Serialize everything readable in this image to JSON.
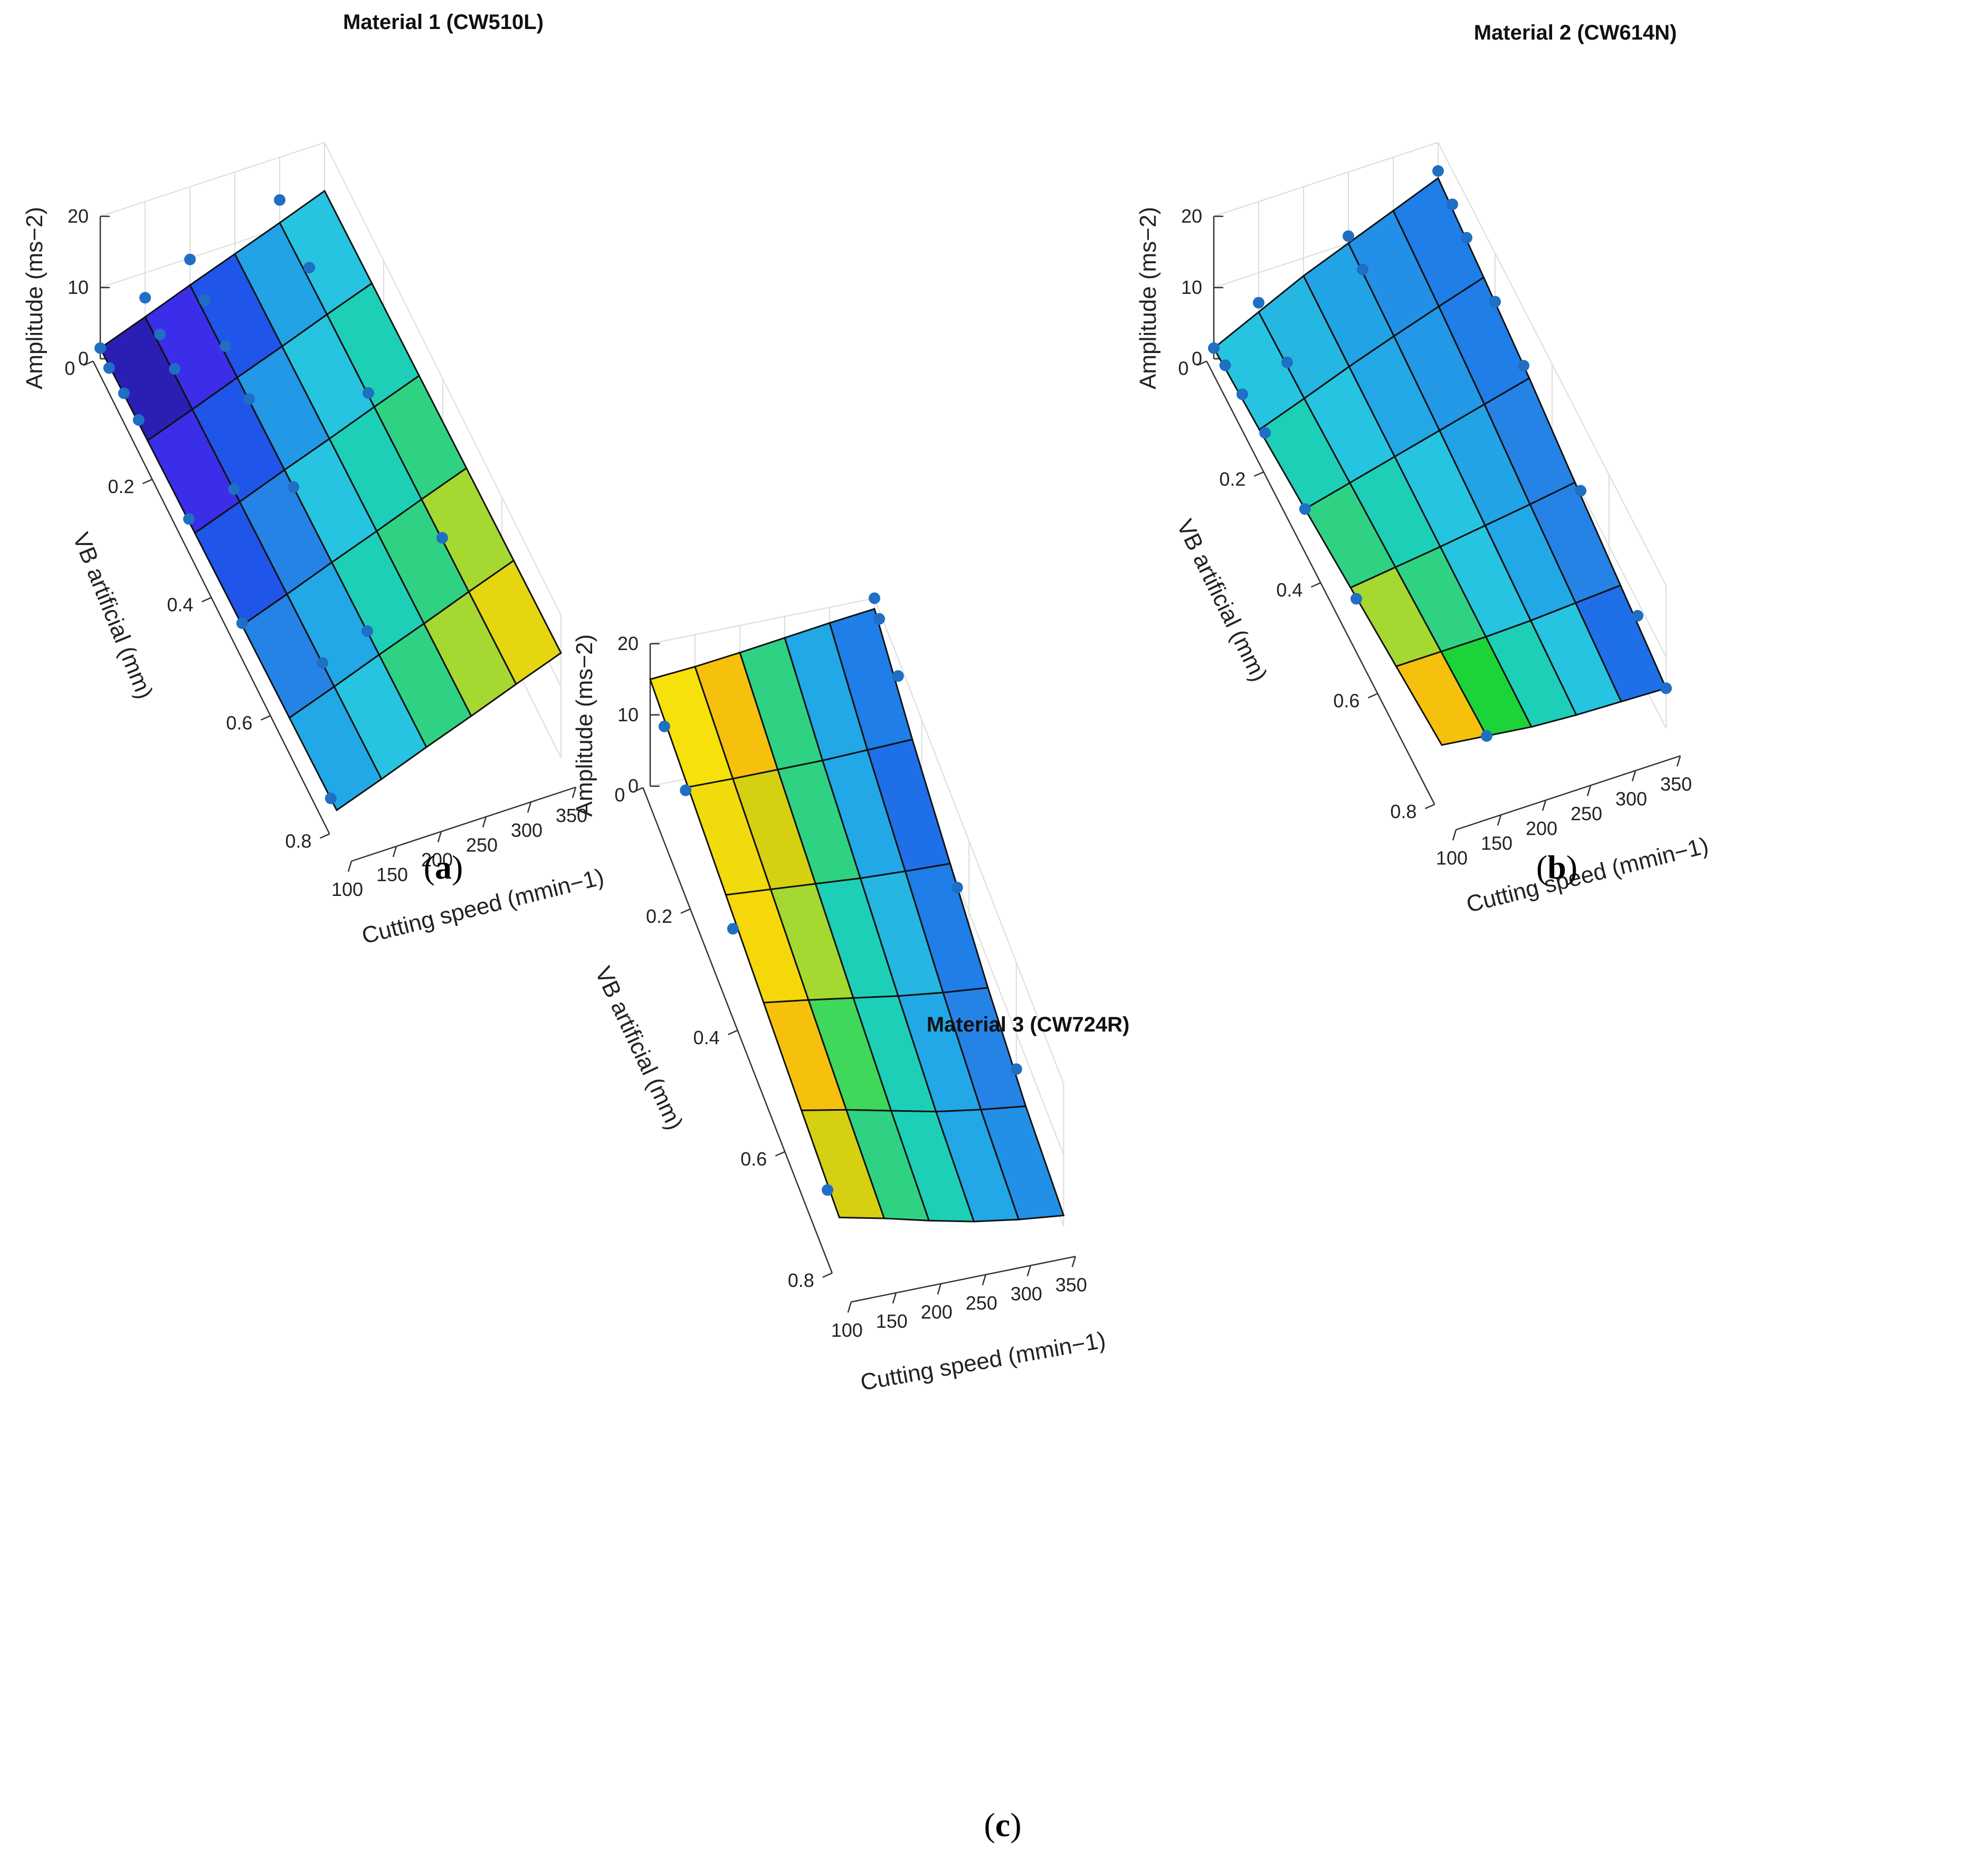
{
  "chart_data": [
    {
      "type": "surface",
      "panel": "(a)",
      "caption_letter": "a",
      "title": "Material 1 (CW510L)",
      "xlabel": "Cutting speed",
      "xunit": "(mmin−1)",
      "ylabel": "VB artificial (mm)",
      "zlabel": "Amplitude",
      "zunit": "(ms−2)",
      "x_ticks": [
        "100",
        "150",
        "200",
        "250",
        "300",
        "350"
      ],
      "y_ticks": [
        "0",
        "0.2",
        "0.4",
        "0.6",
        "0.8"
      ],
      "z_ticks": [
        "0",
        "10",
        "20"
      ],
      "xlim": [
        100,
        350
      ],
      "ylim": [
        0,
        0.8
      ],
      "zlim": [
        0,
        20
      ],
      "grid": true,
      "x_values": [
        100,
        150,
        200,
        250,
        300,
        350
      ],
      "y_values": [
        0,
        0.16,
        0.32,
        0.48,
        0.64,
        0.8
      ],
      "z_grid": [
        [
          1.5,
          3.8,
          6.2,
          8.5,
          10.8,
          13.2
        ],
        [
          1.8,
          4.1,
          6.5,
          8.8,
          11.2,
          13.5
        ],
        [
          2.1,
          4.4,
          6.8,
          9.1,
          11.5,
          13.8
        ],
        [
          2.4,
          4.7,
          7.1,
          9.4,
          11.8,
          14.1
        ],
        [
          2.7,
          5.0,
          7.4,
          9.7,
          12.1,
          14.4
        ],
        [
          3.0,
          5.3,
          7.7,
          10.0,
          12.4,
          14.7
        ]
      ],
      "cell_colors": [
        [
          "#2a1fb3",
          "#3a2ee8",
          "#1f55e8",
          "#22a3e6",
          "#26c4e0"
        ],
        [
          "#3a2ee8",
          "#1f55e8",
          "#2298e6",
          "#26c4e0",
          "#1ecfb8"
        ],
        [
          "#1f55e8",
          "#2683e6",
          "#26c4e0",
          "#1ecfb8",
          "#2fd283"
        ],
        [
          "#2683e6",
          "#22a8e6",
          "#1ecfb8",
          "#2fd283",
          "#a6d832"
        ],
        [
          "#22a8e6",
          "#26c4e0",
          "#2fd283",
          "#a6d832",
          "#e6d611"
        ],
        [
          "#26c4e0",
          "#1ecfb8",
          "#7ed83a",
          "#e6d611",
          "#f6d80a"
        ]
      ],
      "points": [
        [
          100,
          0,
          1.5
        ],
        [
          100,
          0.03,
          1.2
        ],
        [
          100,
          0.08,
          1.8
        ],
        [
          100,
          0.13,
          2.2
        ],
        [
          100,
          0.3,
          2.4
        ],
        [
          100,
          0.48,
          2.7
        ],
        [
          100,
          0.78,
          3.0
        ],
        [
          150,
          0,
          6.5
        ],
        [
          150,
          0.05,
          5.5
        ],
        [
          150,
          0.1,
          4.8
        ],
        [
          150,
          0.3,
          4.5
        ],
        [
          150,
          0.6,
          5.0
        ],
        [
          200,
          0,
          9.8
        ],
        [
          200,
          0.05,
          8.2
        ],
        [
          200,
          0.12,
          7.6
        ],
        [
          200,
          0.2,
          6.8
        ],
        [
          200,
          0.35,
          6.9
        ],
        [
          200,
          0.6,
          7.4
        ],
        [
          300,
          0.0,
          14.0
        ],
        [
          300,
          0.1,
          12.8
        ],
        [
          300,
          0.3,
          11.8
        ],
        [
          300,
          0.55,
          12.2
        ]
      ]
    },
    {
      "type": "surface",
      "panel": "(b)",
      "caption_letter": "b",
      "title": "Material 2 (CW614N)",
      "xlabel": "Cutting speed",
      "xunit": "(mmin−1)",
      "ylabel": "VB artificial (mm)",
      "zlabel": "Amplitude",
      "zunit": "(ms−2)",
      "x_ticks": [
        "100",
        "150",
        "200",
        "250",
        "300",
        "350"
      ],
      "y_ticks": [
        "0",
        "0.2",
        "0.4",
        "0.6",
        "0.8"
      ],
      "z_ticks": [
        "0",
        "10",
        "20"
      ],
      "xlim": [
        100,
        350
      ],
      "ylim": [
        0,
        0.8
      ],
      "zlim": [
        0,
        20
      ],
      "grid": true,
      "x_values": [
        100,
        150,
        200,
        250,
        300,
        350
      ],
      "y_values": [
        0,
        0.16,
        0.32,
        0.48,
        0.64,
        0.8
      ],
      "z_grid": [
        [
          1.5,
          4.5,
          7.5,
          10.0,
          12.5,
          15.0
        ],
        [
          2.5,
          4.8,
          7.2,
          9.4,
          11.5,
          13.5
        ],
        [
          3.8,
          5.4,
          7.0,
          8.6,
          10.2,
          11.8
        ],
        [
          5.2,
          6.0,
          6.8,
          7.7,
          8.6,
          9.6
        ],
        [
          6.6,
          6.6,
          6.6,
          6.8,
          7.2,
          7.6
        ],
        [
          8.0,
          7.2,
          6.4,
          6.0,
          5.8,
          5.6
        ]
      ],
      "cell_colors": [
        [
          "#26c4e0",
          "#26b6e2",
          "#22a3e6",
          "#2290e6",
          "#1f7ee8"
        ],
        [
          "#1ecfb8",
          "#26c4e0",
          "#22a8e6",
          "#2298e6",
          "#1f7ee8"
        ],
        [
          "#2fd283",
          "#1ecfb8",
          "#26c4e0",
          "#22a3e6",
          "#2683e6"
        ],
        [
          "#a6d832",
          "#2fd283",
          "#26c4e0",
          "#22a8e6",
          "#2683e6"
        ],
        [
          "#f6c10d",
          "#1dd33a",
          "#1ecfb8",
          "#26c4e0",
          "#1f6fe8"
        ],
        [
          "#f6e10a",
          "#bcd624",
          "#2fd283",
          "#22b8e4",
          "#1f5fe8"
        ]
      ],
      "points": [
        [
          100,
          0,
          1.5
        ],
        [
          100,
          0.04,
          2.2
        ],
        [
          100,
          0.1,
          2.8
        ],
        [
          100,
          0.18,
          3.6
        ],
        [
          100,
          0.32,
          3.8
        ],
        [
          100,
          0.5,
          5.2
        ],
        [
          150,
          0,
          5.8
        ],
        [
          150,
          0.1,
          5.2
        ],
        [
          150,
          0.8,
          7.2
        ],
        [
          250,
          0,
          11.0
        ],
        [
          250,
          0.05,
          10.2
        ],
        [
          350,
          0,
          16.0
        ],
        [
          350,
          0.05,
          15.2
        ],
        [
          350,
          0.1,
          14.4
        ],
        [
          350,
          0.2,
          13.2
        ],
        [
          350,
          0.3,
          12.0
        ],
        [
          350,
          0.5,
          10.0
        ],
        [
          350,
          0.7,
          8.0
        ],
        [
          350,
          0.8,
          5.6
        ]
      ]
    },
    {
      "type": "surface",
      "panel": "(c)",
      "caption_letter": "c",
      "title": "Material 3 (CW724R)",
      "xlabel": "Cutting speed",
      "xunit": "(mmin−1)",
      "ylabel": "VB artificial (mm)",
      "zlabel": "Amplitude",
      "zunit": "(ms−2)",
      "x_ticks": [
        "100",
        "150",
        "200",
        "250",
        "300",
        "350"
      ],
      "y_ticks": [
        "0",
        "0.2",
        "0.4",
        "0.6",
        "0.8"
      ],
      "z_ticks": [
        "0",
        "10",
        "20"
      ],
      "xlim": [
        100,
        350
      ],
      "ylim": [
        0,
        0.8
      ],
      "zlim": [
        0,
        20
      ],
      "grid": true,
      "x_values": [
        100,
        150,
        200,
        250,
        300,
        350
      ],
      "y_values": [
        0,
        0.16,
        0.32,
        0.48,
        0.64,
        0.8
      ],
      "z_grid": [
        [
          15.0,
          15.5,
          16.2,
          17.0,
          17.8,
          18.5
        ],
        [
          13.5,
          13.4,
          13.4,
          13.4,
          13.6,
          13.8
        ],
        [
          12.0,
          11.5,
          11.0,
          10.5,
          10.2,
          10.0
        ],
        [
          10.5,
          9.6,
          8.6,
          7.6,
          6.8,
          6.2
        ],
        [
          9.0,
          7.8,
          6.4,
          5.0,
          4.0,
          3.2
        ],
        [
          7.6,
          6.2,
          4.6,
          3.2,
          2.2,
          1.5
        ]
      ],
      "cell_colors": [
        [
          "#f6e10a",
          "#f6c10d",
          "#2fd283",
          "#22a8e6",
          "#1f7ee8"
        ],
        [
          "#f2db0c",
          "#d6d012",
          "#2fd283",
          "#22a8e6",
          "#1f6fe8"
        ],
        [
          "#f6d80a",
          "#a6d832",
          "#1ecfb8",
          "#26b6e2",
          "#1f7ee8"
        ],
        [
          "#f6c10d",
          "#3fd85a",
          "#1ecfb8",
          "#22a8e6",
          "#2683e6"
        ],
        [
          "#d6d012",
          "#2fd283",
          "#1ecfb8",
          "#22a8e6",
          "#2290e6"
        ],
        [
          "#7ed83a",
          "#2fd283",
          "#26c4e0",
          "#22b8e4",
          "#2298e6"
        ]
      ],
      "points": [
        [
          100,
          0.06,
          13.5
        ],
        [
          100,
          0.15,
          12.2
        ],
        [
          100,
          0.35,
          9.8
        ],
        [
          100,
          0.75,
          7.2
        ],
        [
          350,
          0,
          20.0
        ],
        [
          350,
          0.02,
          18.8
        ],
        [
          350,
          0.1,
          17.6
        ],
        [
          350,
          0.35,
          9.2
        ],
        [
          350,
          0.6,
          5.0
        ]
      ]
    }
  ]
}
